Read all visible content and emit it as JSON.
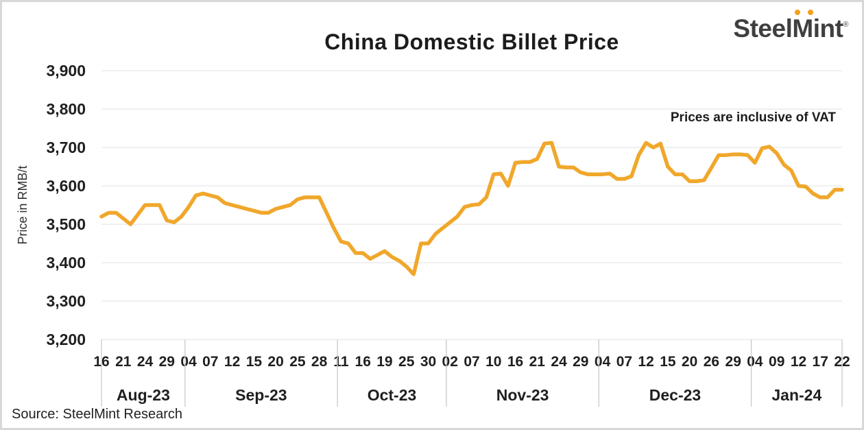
{
  "header": {
    "title": "China Domestic Billet Price"
  },
  "logo": {
    "steel": "Steel",
    "m": "M",
    "int": "int",
    "reg": "®"
  },
  "annotation": {
    "text": "Prices are inclusive of VAT"
  },
  "source": {
    "text": "Source: SteelMint Research"
  },
  "colors": {
    "line": "#F0A72B",
    "grid": "#ebebeb",
    "separator": "#cccccc",
    "text": "#1f1f1f",
    "logo_dots": "#F5A01E"
  },
  "chart_data": {
    "type": "line",
    "title": "China Domestic Billet Price",
    "xlabel": "",
    "ylabel": "Price in RMB/t",
    "ylim": [
      3200,
      3900
    ],
    "ytick_values": [
      3900,
      3800,
      3700,
      3600,
      3500,
      3400,
      3300,
      3200
    ],
    "ytick_labels": [
      "3,900",
      "3,800",
      "3,700",
      "3,600",
      "3,500",
      "3,400",
      "3,300",
      "3,200"
    ],
    "grid": true,
    "legend": "none",
    "line_color": "#F0A72B",
    "grid_color": "#ebebeb",
    "separator_color": "#cccccc",
    "points_per_tick": 3,
    "groups": [
      {
        "month": "Aug-23",
        "tick_labels": [
          "16",
          "21",
          "24",
          "29"
        ],
        "values": [
          3520,
          3530,
          3530,
          3515,
          3500,
          3525,
          3550,
          3550,
          3550,
          3510,
          3505,
          3520
        ]
      },
      {
        "month": "Sep-23",
        "tick_labels": [
          "04",
          "07",
          "12",
          "15",
          "20",
          "25",
          "28"
        ],
        "values": [
          3545,
          3575,
          3580,
          3575,
          3570,
          3555,
          3550,
          3545,
          3540,
          3535,
          3530,
          3530,
          3540,
          3545,
          3550,
          3565,
          3570,
          3570,
          3570,
          3530,
          3490
        ]
      },
      {
        "month": "Oct-23",
        "tick_labels": [
          "11",
          "16",
          "19",
          "25",
          "30"
        ],
        "values": [
          3455,
          3450,
          3425,
          3425,
          3410,
          3420,
          3430,
          3415,
          3405,
          3390,
          3370,
          3450,
          3450,
          3475,
          3490
        ]
      },
      {
        "month": "Nov-23",
        "tick_labels": [
          "02",
          "07",
          "10",
          "16",
          "21",
          "24",
          "29"
        ],
        "values": [
          3505,
          3520,
          3545,
          3550,
          3552,
          3570,
          3630,
          3632,
          3600,
          3660,
          3662,
          3662,
          3670,
          3710,
          3712,
          3650,
          3648,
          3648,
          3635,
          3630,
          3630
        ]
      },
      {
        "month": "Dec-23",
        "tick_labels": [
          "04",
          "07",
          "12",
          "15",
          "20",
          "26",
          "29"
        ],
        "values": [
          3630,
          3632,
          3618,
          3618,
          3625,
          3680,
          3712,
          3700,
          3710,
          3650,
          3630,
          3630,
          3612,
          3612,
          3615,
          3647,
          3680,
          3680,
          3682,
          3682,
          3680
        ]
      },
      {
        "month": "Jan-24",
        "tick_labels": [
          "04",
          "09",
          "12",
          "17",
          "22"
        ],
        "values": [
          3660,
          3698,
          3702,
          3685,
          3655,
          3640,
          3600,
          3598,
          3580,
          3570,
          3570,
          3590,
          3590
        ]
      }
    ]
  }
}
